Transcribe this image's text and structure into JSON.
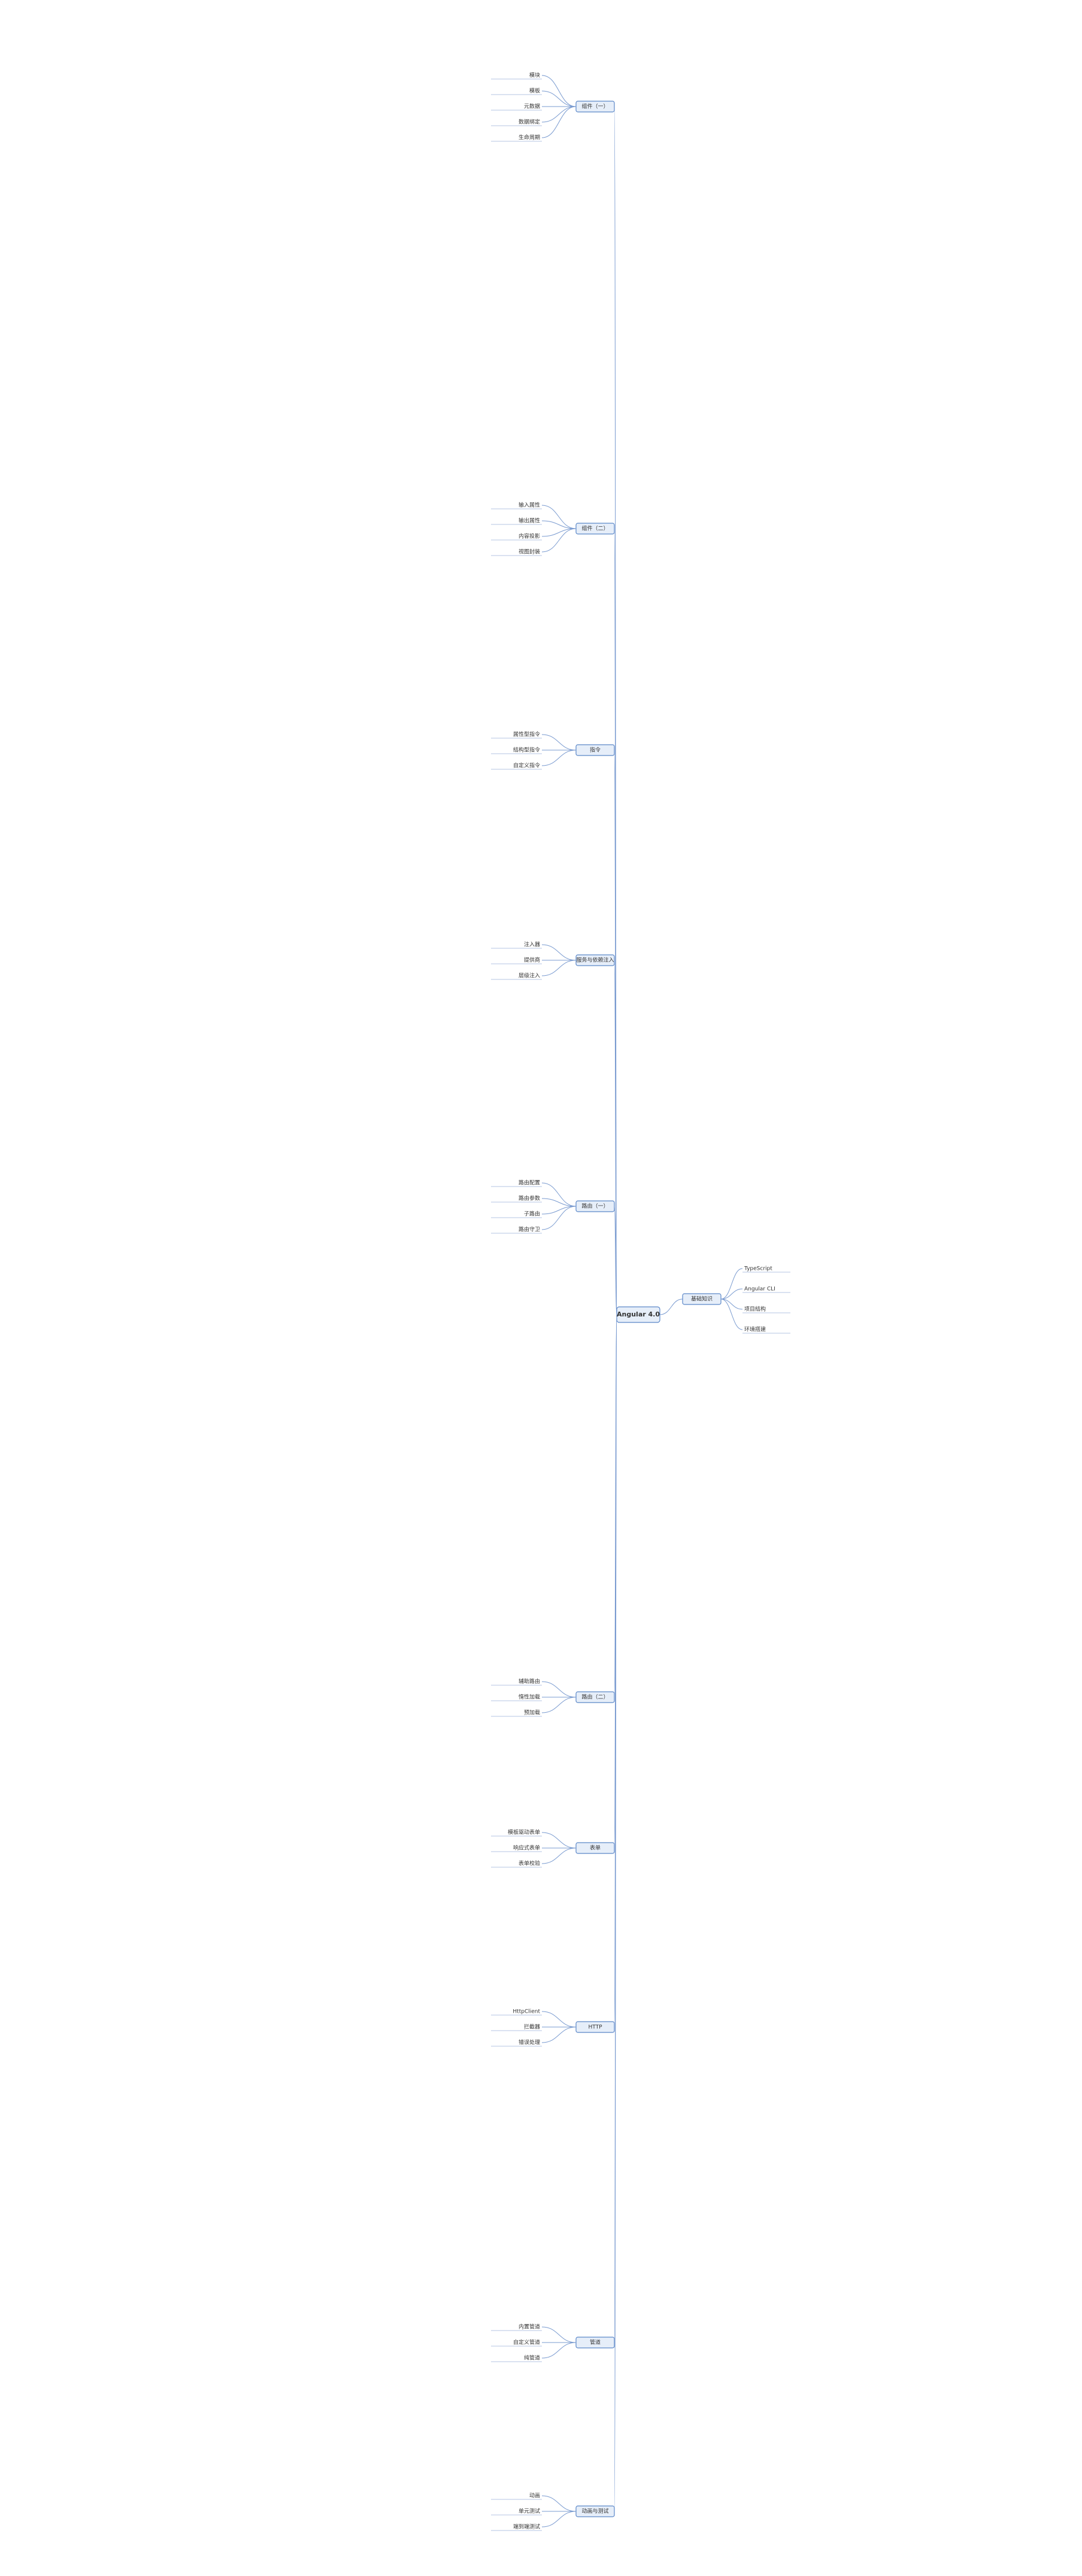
{
  "central": "Angular 4.0",
  "branches": [
    {
      "label": "组件（一）",
      "children": [
        "模块",
        "模板",
        "元数据",
        "数据绑定",
        "生命周期"
      ]
    },
    {
      "label": "组件（二）",
      "children": [
        "输入属性",
        "输出属性",
        "内容投影",
        "视图封装"
      ]
    },
    {
      "label": "指令",
      "children": [
        "属性型指令",
        "结构型指令",
        "自定义指令"
      ]
    },
    {
      "label": "服务与依赖注入",
      "children": [
        "注入器",
        "提供商",
        "层级注入"
      ]
    },
    {
      "label": "路由（一）",
      "children": [
        "路由配置",
        "路由参数",
        "子路由",
        "路由守卫"
      ]
    },
    {
      "label": "路由（二）",
      "children": [
        "辅助路由",
        "惰性加载",
        "预加载"
      ]
    },
    {
      "label": "表单",
      "children": [
        "模板驱动表单",
        "响应式表单",
        "表单校验"
      ]
    },
    {
      "label": "HTTP",
      "children": [
        "HttpClient",
        "拦截器",
        "错误处理"
      ]
    },
    {
      "label": "管道",
      "children": [
        "内置管道",
        "自定义管道",
        "纯管道"
      ]
    },
    {
      "label": "动画与测试",
      "children": [
        "动画",
        "单元测试",
        "端到端测试"
      ]
    }
  ],
  "right_branch": {
    "label": "基础知识",
    "children": [
      "TypeScript",
      "Angular CLI",
      "项目结构",
      "环境搭建"
    ]
  }
}
